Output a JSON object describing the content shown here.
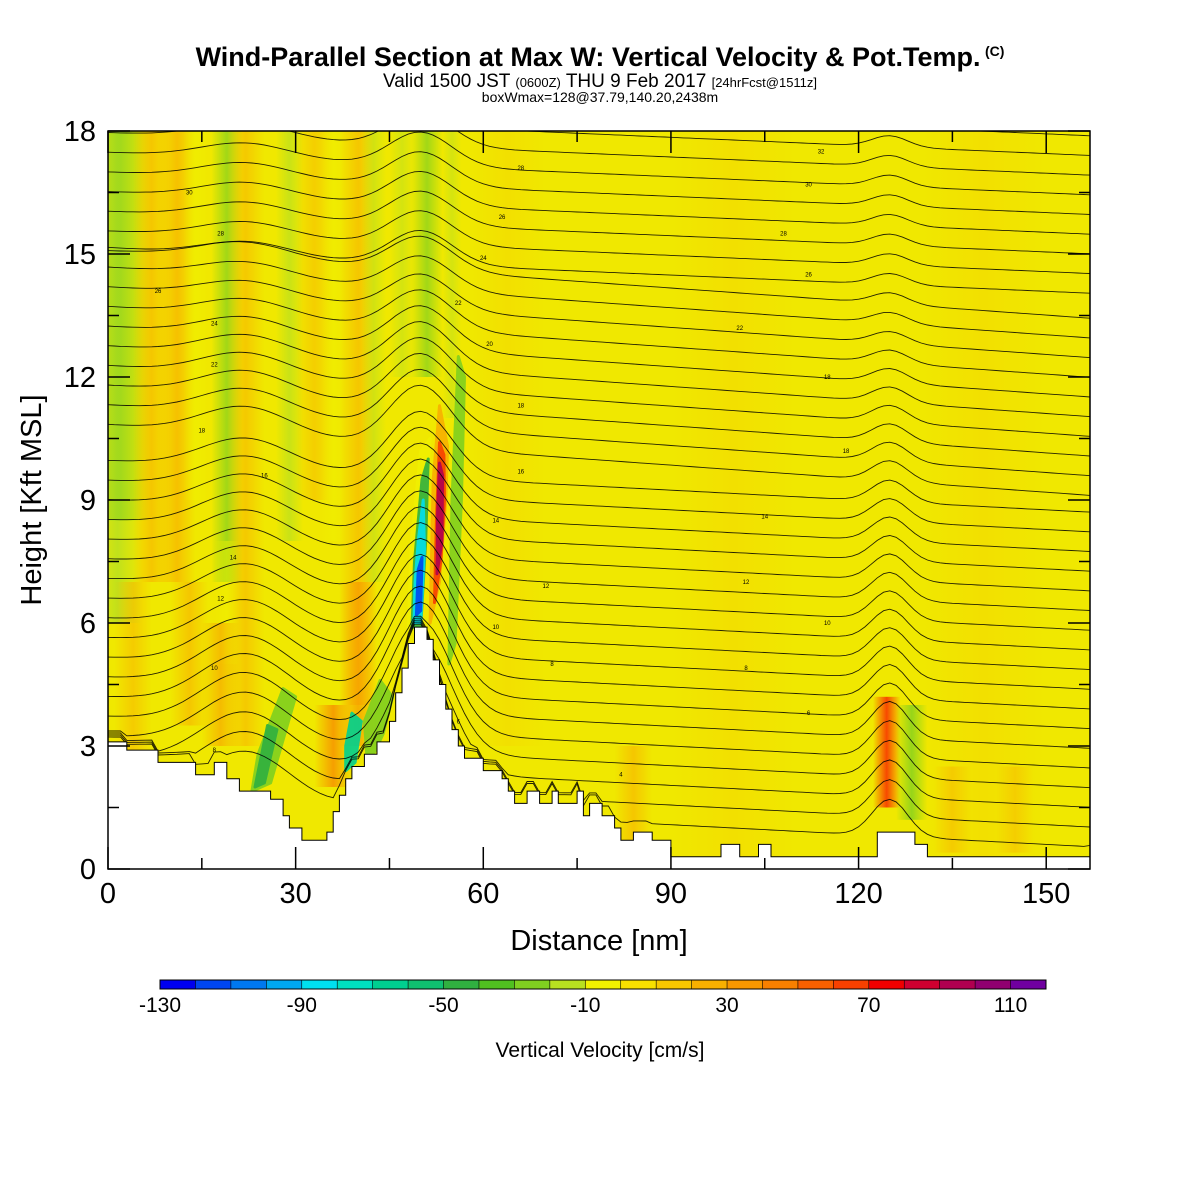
{
  "chart_data": {
    "type": "heatmap",
    "title": "Wind-Parallel Section at Max W: Vertical Velocity & Pot.Temp.",
    "title_mark": "(C)",
    "subtitle_parts": [
      "Valid 1500 JST ",
      "(0600Z)",
      " THU 9 Feb 2017 ",
      "[24hrFcst@1511z]"
    ],
    "subtitle2": "boxWmax=128@37.79,140.20,2438m",
    "xlabel": "Distance [nm]",
    "ylabel": "Height [Kft MSL]",
    "xlim": [
      0,
      157
    ],
    "ylim": [
      0,
      18
    ],
    "x_ticks": [
      "0",
      "30",
      "60",
      "90",
      "120",
      "150"
    ],
    "y_ticks": [
      "0",
      "3",
      "6",
      "9",
      "12",
      "15",
      "18"
    ],
    "colorbar": {
      "label": "Vertical Velocity [cm/s]",
      "range": [
        -130,
        120
      ],
      "tick_labels": [
        "-130",
        "-90",
        "-50",
        "-10",
        "30",
        "70",
        "110"
      ],
      "colors": [
        "#0000f0",
        "#0046f0",
        "#0078f0",
        "#00a8f0",
        "#00e0f0",
        "#00e0c0",
        "#00d090",
        "#10c070",
        "#30b040",
        "#50c020",
        "#80d020",
        "#b8e020",
        "#f0f000",
        "#f8e000",
        "#f8c800",
        "#f8b000",
        "#f89800",
        "#f88000",
        "#f86000",
        "#f84000",
        "#f00000",
        "#d00030",
        "#b00050",
        "#900070",
        "#7000a0"
      ]
    },
    "terrain_kft": [
      [
        0,
        3.1
      ],
      [
        3,
        3.1
      ],
      [
        3,
        2.9
      ],
      [
        8,
        2.9
      ],
      [
        8,
        2.6
      ],
      [
        14,
        2.6
      ],
      [
        14,
        2.3
      ],
      [
        17,
        2.3
      ],
      [
        17,
        2.6
      ],
      [
        19,
        2.6
      ],
      [
        19,
        2.2
      ],
      [
        21,
        2.2
      ],
      [
        21,
        1.9
      ],
      [
        26,
        1.9
      ],
      [
        26,
        1.7
      ],
      [
        28,
        1.7
      ],
      [
        28,
        1.3
      ],
      [
        29,
        1.3
      ],
      [
        29,
        1.0
      ],
      [
        31,
        1.0
      ],
      [
        31,
        0.7
      ],
      [
        35,
        0.7
      ],
      [
        35,
        0.9
      ],
      [
        36,
        0.9
      ],
      [
        36,
        1.4
      ],
      [
        37,
        1.4
      ],
      [
        37,
        1.8
      ],
      [
        38,
        1.8
      ],
      [
        38,
        2.2
      ],
      [
        39,
        2.2
      ],
      [
        39,
        2.5
      ],
      [
        41,
        2.5
      ],
      [
        41,
        2.8
      ],
      [
        43,
        2.8
      ],
      [
        43,
        3.1
      ],
      [
        45,
        3.1
      ],
      [
        45,
        3.6
      ],
      [
        46,
        3.6
      ],
      [
        46,
        4.3
      ],
      [
        47,
        4.3
      ],
      [
        47,
        4.9
      ],
      [
        48,
        4.9
      ],
      [
        48,
        5.5
      ],
      [
        49,
        5.5
      ],
      [
        49,
        5.9
      ],
      [
        51,
        5.9
      ],
      [
        51,
        5.6
      ],
      [
        52,
        5.6
      ],
      [
        52,
        5.1
      ],
      [
        53,
        5.1
      ],
      [
        53,
        4.5
      ],
      [
        54,
        4.5
      ],
      [
        54,
        3.9
      ],
      [
        55,
        3.9
      ],
      [
        55,
        3.4
      ],
      [
        56,
        3.4
      ],
      [
        56,
        3.0
      ],
      [
        57,
        3.0
      ],
      [
        57,
        2.7
      ],
      [
        60,
        2.7
      ],
      [
        60,
        2.4
      ],
      [
        63,
        2.4
      ],
      [
        63,
        2.2
      ],
      [
        64,
        2.2
      ],
      [
        64,
        1.9
      ],
      [
        65,
        1.9
      ],
      [
        65,
        1.6
      ],
      [
        67,
        1.6
      ],
      [
        67,
        1.9
      ],
      [
        69,
        1.9
      ],
      [
        69,
        1.6
      ],
      [
        71,
        1.6
      ],
      [
        71,
        1.9
      ],
      [
        72,
        1.9
      ],
      [
        72,
        1.6
      ],
      [
        75,
        1.6
      ],
      [
        75,
        1.9
      ],
      [
        76,
        1.9
      ],
      [
        76,
        1.3
      ],
      [
        77,
        1.3
      ],
      [
        77,
        1.6
      ],
      [
        79,
        1.6
      ],
      [
        79,
        1.3
      ],
      [
        81,
        1.3
      ],
      [
        81,
        1.0
      ],
      [
        82,
        1.0
      ],
      [
        82,
        0.7
      ],
      [
        84,
        0.7
      ],
      [
        84,
        0.9
      ],
      [
        87,
        0.9
      ],
      [
        87,
        0.7
      ],
      [
        90,
        0.7
      ],
      [
        90,
        0.3
      ],
      [
        98,
        0.3
      ],
      [
        98,
        0.6
      ],
      [
        101,
        0.6
      ],
      [
        101,
        0.3
      ],
      [
        104,
        0.3
      ],
      [
        104,
        0.6
      ],
      [
        106,
        0.6
      ],
      [
        106,
        0.3
      ],
      [
        123,
        0.3
      ],
      [
        123,
        0.9
      ],
      [
        129,
        0.9
      ],
      [
        129,
        0.6
      ],
      [
        131,
        0.6
      ],
      [
        131,
        0.3
      ],
      [
        157,
        0.3
      ]
    ],
    "theta_labels": [
      {
        "x": 18,
        "y": 15.5,
        "text": "28"
      },
      {
        "x": 13,
        "y": 16.5,
        "text": "30"
      },
      {
        "x": 8,
        "y": 14.1,
        "text": "26"
      },
      {
        "x": 17,
        "y": 13.3,
        "text": "24"
      },
      {
        "x": 17,
        "y": 12.3,
        "text": "22"
      },
      {
        "x": 15,
        "y": 10.7,
        "text": "18"
      },
      {
        "x": 25,
        "y": 9.6,
        "text": "16"
      },
      {
        "x": 20,
        "y": 7.6,
        "text": "14"
      },
      {
        "x": 18,
        "y": 6.6,
        "text": "12"
      },
      {
        "x": 17,
        "y": 4.9,
        "text": "10"
      },
      {
        "x": 17,
        "y": 2.9,
        "text": "8"
      },
      {
        "x": 66,
        "y": 17.1,
        "text": "28"
      },
      {
        "x": 63,
        "y": 15.9,
        "text": "26"
      },
      {
        "x": 60,
        "y": 14.9,
        "text": "24"
      },
      {
        "x": 56,
        "y": 13.8,
        "text": "22"
      },
      {
        "x": 61,
        "y": 12.8,
        "text": "20"
      },
      {
        "x": 66,
        "y": 11.3,
        "text": "18"
      },
      {
        "x": 66,
        "y": 9.7,
        "text": "16"
      },
      {
        "x": 62,
        "y": 8.5,
        "text": "14"
      },
      {
        "x": 70,
        "y": 6.9,
        "text": "12"
      },
      {
        "x": 62,
        "y": 5.9,
        "text": "10"
      },
      {
        "x": 71,
        "y": 5.0,
        "text": "8"
      },
      {
        "x": 56,
        "y": 3.6,
        "text": "6"
      },
      {
        "x": 82,
        "y": 2.3,
        "text": "4"
      },
      {
        "x": 114,
        "y": 17.5,
        "text": "32"
      },
      {
        "x": 112,
        "y": 16.7,
        "text": "30"
      },
      {
        "x": 108,
        "y": 15.5,
        "text": "28"
      },
      {
        "x": 112,
        "y": 14.5,
        "text": "26"
      },
      {
        "x": 101,
        "y": 13.2,
        "text": "22"
      },
      {
        "x": 115,
        "y": 12.0,
        "text": "18"
      },
      {
        "x": 118,
        "y": 10.2,
        "text": "18"
      },
      {
        "x": 105,
        "y": 8.6,
        "text": "14"
      },
      {
        "x": 102,
        "y": 7.0,
        "text": "12"
      },
      {
        "x": 115,
        "y": 6.0,
        "text": "10"
      },
      {
        "x": 102,
        "y": 4.9,
        "text": "8"
      },
      {
        "x": 112,
        "y": 3.8,
        "text": "6"
      }
    ]
  }
}
